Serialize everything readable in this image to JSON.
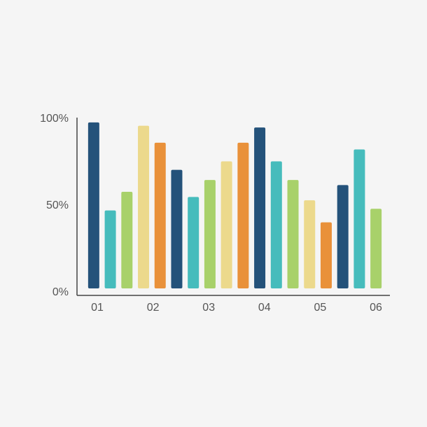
{
  "chart_data": {
    "type": "bar",
    "values": [
      98,
      46,
      57,
      96,
      86,
      70,
      54,
      64,
      75,
      86,
      95,
      75,
      64,
      52,
      39,
      61,
      82,
      47
    ],
    "colors": [
      "#24527a",
      "#46bcbc",
      "#a8d16a",
      "#ecd98c",
      "#e9913a",
      "#24527a",
      "#46bcbc",
      "#a8d16a",
      "#ecd98c",
      "#e9913a",
      "#24527a",
      "#46bcbc",
      "#a8d16a",
      "#ecd98c",
      "#e9913a",
      "#24527a",
      "#46bcbc",
      "#a8d16a"
    ],
    "xticks": [
      "01",
      "02",
      "03",
      "04",
      "05",
      "06"
    ],
    "ylim": [
      0,
      100
    ],
    "yticks": [
      {
        "value": 0,
        "label": "0%"
      },
      {
        "value": 50,
        "label": "50%"
      },
      {
        "value": 100,
        "label": "100%"
      }
    ]
  }
}
